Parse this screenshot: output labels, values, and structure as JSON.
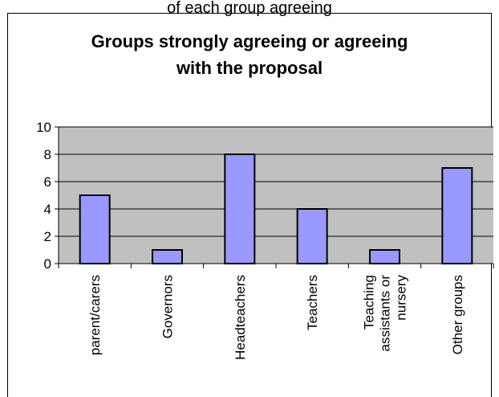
{
  "top_caption": "of each group agreeing",
  "chart_data": {
    "type": "bar",
    "title_lines": [
      "Groups strongly agreeing or agreeing",
      "with the proposal"
    ],
    "categories": [
      "parent/carers",
      "Governors",
      "Headteachers",
      "Teachers",
      "Teaching assistants or nursery",
      "Other groups"
    ],
    "category_label_lines": [
      [
        "parent/carers"
      ],
      [
        "Governors"
      ],
      [
        "Headteachers"
      ],
      [
        "Teachers"
      ],
      [
        "Teaching",
        "assistants or",
        "nursery"
      ],
      [
        "Other groups"
      ]
    ],
    "values": [
      5,
      1,
      8,
      4,
      1,
      7
    ],
    "ylim": [
      0,
      10
    ],
    "yticks": [
      0,
      2,
      4,
      6,
      8,
      10
    ],
    "grid": true,
    "plot_background": "#c0c0c0",
    "bar_color": "#9999ff"
  }
}
